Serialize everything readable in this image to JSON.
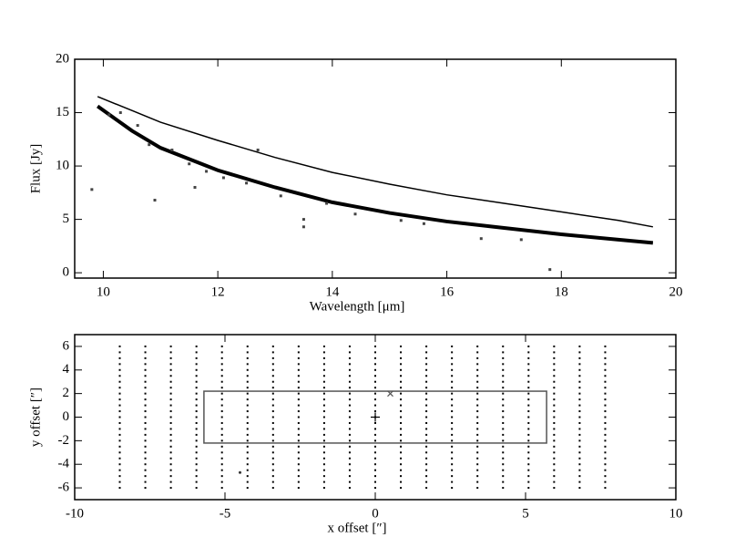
{
  "chart_data": [
    {
      "type": "line",
      "xlabel": "Wavelength [μm]",
      "ylabel": "Flux [Jy]",
      "xlim": [
        9.5,
        20
      ],
      "ylim": [
        -0.5,
        20
      ],
      "xticks": [
        10,
        12,
        14,
        16,
        18,
        20
      ],
      "yticks": [
        0,
        5,
        10,
        15,
        20
      ],
      "series": [
        {
          "color": "#000000",
          "width": 1.5,
          "x": [
            9.9,
            10.5,
            11,
            12,
            13,
            14,
            15,
            16,
            17,
            18,
            19,
            19.6
          ],
          "values": [
            16.5,
            15.2,
            14.1,
            12.4,
            10.8,
            9.4,
            8.3,
            7.3,
            6.5,
            5.7,
            4.9,
            4.3
          ]
        },
        {
          "color": "#000000",
          "width": 4,
          "x": [
            9.9,
            10.5,
            11,
            12,
            13,
            14,
            15,
            16,
            17,
            18,
            19,
            19.6
          ],
          "values": [
            15.6,
            13.3,
            11.7,
            9.6,
            8.0,
            6.6,
            5.6,
            4.8,
            4.2,
            3.6,
            3.1,
            2.8
          ]
        },
        {
          "color": "#444444",
          "mode": "markers",
          "x": [
            9.8,
            10.1,
            10.3,
            10.6,
            10.9,
            11.2,
            11.5,
            11.8,
            12.1,
            12.7,
            13.1,
            13.5,
            13.5,
            13.9,
            14.4,
            15.2,
            15.6,
            16.6,
            17.3,
            17.8,
            10.8,
            11.6,
            12.5
          ],
          "values": [
            7.8,
            14.8,
            15.0,
            13.8,
            6.8,
            11.5,
            10.2,
            9.5,
            8.9,
            11.5,
            7.2,
            5.0,
            4.3,
            6.5,
            5.5,
            4.9,
            4.6,
            3.2,
            3.1,
            0.3,
            12.0,
            8.0,
            8.4
          ]
        }
      ]
    },
    {
      "type": "scatter",
      "xlabel": "x offset [″]",
      "ylabel": "y offset [″]",
      "xlim": [
        -10,
        10
      ],
      "ylim": [
        -7,
        7
      ],
      "xticks": [
        -10,
        -5,
        0,
        5,
        10
      ],
      "yticks": [
        -6,
        -4,
        -2,
        0,
        2,
        4,
        6
      ],
      "grid_x": [
        -8.5,
        -7.65,
        -6.8,
        -5.95,
        -5.1,
        -4.25,
        -3.4,
        -2.55,
        -1.7,
        -0.85,
        0,
        0.85,
        1.7,
        2.55,
        3.4,
        4.25,
        5.1,
        5.95,
        6.8,
        7.65
      ],
      "grid_y": [
        -6,
        -5.5,
        -5,
        -4.5,
        -4,
        -3.5,
        -3,
        -2.5,
        -2,
        -1.5,
        -1,
        -0.5,
        0,
        0.5,
        1,
        1.5,
        2,
        2.5,
        3,
        3.5,
        4,
        4.5,
        5,
        5.5,
        6
      ],
      "rectangle": {
        "x": [
          -5.7,
          5.7
        ],
        "y": [
          -2.2,
          2.2
        ]
      },
      "points": [
        {
          "symbol": "+",
          "x": 0,
          "y": 0
        },
        {
          "symbol": "x",
          "x": 0.5,
          "y": 2
        },
        {
          "symbol": "dot",
          "x": -4.5,
          "y": -4.7
        }
      ]
    }
  ]
}
